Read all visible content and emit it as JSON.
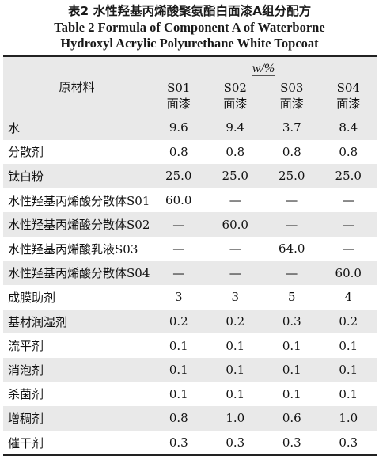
{
  "caption": {
    "cn": "表2 水性羟基丙烯酸聚氨酯白面漆A组分配方",
    "en_line1": "Table 2 Formula of Component A of Waterborne",
    "en_line2": "Hydroxyl Acrylic Polyurethane White Topcoat"
  },
  "table": {
    "header_name": "原材料",
    "unit_label": "w/%",
    "columns": [
      {
        "code": "S01",
        "label": "面漆"
      },
      {
        "code": "S02",
        "label": "面漆"
      },
      {
        "code": "S03",
        "label": "面漆"
      },
      {
        "code": "S04",
        "label": "面漆"
      }
    ],
    "rows": [
      {
        "name": "水",
        "values": [
          "9.6",
          "9.4",
          "3.7",
          "8.4"
        ]
      },
      {
        "name": "分散剂",
        "values": [
          "0.8",
          "0.8",
          "0.8",
          "0.8"
        ]
      },
      {
        "name": "钛白粉",
        "values": [
          "25.0",
          "25.0",
          "25.0",
          "25.0"
        ]
      },
      {
        "name": "水性羟基丙烯酸分散体S01",
        "values": [
          "60.0",
          "—",
          "—",
          "—"
        ]
      },
      {
        "name": "水性羟基丙烯酸分散体S02",
        "values": [
          "—",
          "60.0",
          "—",
          "—"
        ]
      },
      {
        "name": "水性羟基丙烯酸乳液S03",
        "values": [
          "—",
          "—",
          "64.0",
          "—"
        ]
      },
      {
        "name": "水性羟基丙烯酸分散体S04",
        "values": [
          "—",
          "—",
          "—",
          "60.0"
        ]
      },
      {
        "name": "成膜助剂",
        "values": [
          "3",
          "3",
          "5",
          "4"
        ]
      },
      {
        "name": "基材润湿剂",
        "values": [
          "0.2",
          "0.2",
          "0.3",
          "0.2"
        ]
      },
      {
        "name": "流平剂",
        "values": [
          "0.1",
          "0.1",
          "0.1",
          "0.1"
        ]
      },
      {
        "name": "消泡剂",
        "values": [
          "0.1",
          "0.1",
          "0.1",
          "0.1"
        ]
      },
      {
        "name": "杀菌剂",
        "values": [
          "0.1",
          "0.1",
          "0.1",
          "0.1"
        ]
      },
      {
        "name": "增稠剂",
        "values": [
          "0.8",
          "1.0",
          "0.6",
          "1.0"
        ]
      },
      {
        "name": "催干剂",
        "values": [
          "0.3",
          "0.3",
          "0.3",
          "0.3"
        ]
      }
    ]
  }
}
